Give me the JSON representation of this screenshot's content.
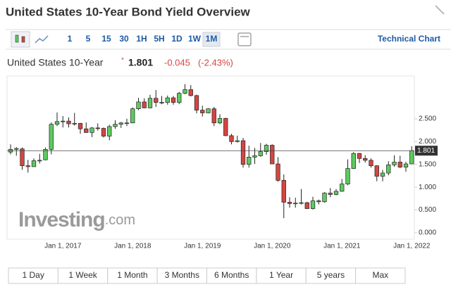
{
  "header": {
    "title": "United States 10-Year Bond Yield Overview"
  },
  "toolbar": {
    "intervals": [
      "1",
      "5",
      "15",
      "30",
      "1H",
      "5H",
      "1D",
      "1W",
      "1M"
    ],
    "technical": "Technical Chart"
  },
  "ranges": [
    "1 Day",
    "1 Week",
    "1 Month",
    "3 Months",
    "6 Months",
    "1 Year",
    "5 years",
    "Max"
  ],
  "chart_data": {
    "type": "candlestick",
    "title": "United States 10-Year",
    "last": 1.801,
    "change": -0.045,
    "change_pct": "(-2.43%)",
    "watermark": {
      "name": "Investing",
      "suffix": ".com"
    },
    "categories": [
      null,
      null,
      null,
      null,
      null,
      null,
      null,
      null,
      null,
      "Jan 1, 2017",
      null,
      null,
      null,
      null,
      null,
      null,
      null,
      null,
      null,
      null,
      null,
      "Jan 1, 2018",
      null,
      null,
      null,
      null,
      null,
      null,
      null,
      null,
      null,
      null,
      null,
      "Jan 1, 2019",
      null,
      null,
      null,
      null,
      null,
      null,
      null,
      null,
      null,
      null,
      null,
      "Jan 1, 2020",
      null,
      null,
      null,
      null,
      null,
      null,
      null,
      null,
      null,
      null,
      null,
      "Jan 1, 2021",
      null,
      null,
      null,
      null,
      null,
      null,
      null,
      null,
      null,
      null,
      null,
      "Jan 1, 2022"
    ],
    "open": [
      1.77,
      1.83,
      1.84,
      1.47,
      1.45,
      1.58,
      1.6,
      1.83,
      2.38,
      2.44,
      2.45,
      2.39,
      2.4,
      2.28,
      2.2,
      2.3,
      2.29,
      2.12,
      2.33,
      2.38,
      2.41,
      2.41,
      2.72,
      2.87,
      2.74,
      2.95,
      2.86,
      2.86,
      2.96,
      2.86,
      3.06,
      3.14,
      3.01,
      2.69,
      2.63,
      2.72,
      2.41,
      2.51,
      2.13,
      2.0,
      2.02,
      1.5,
      1.66,
      1.69,
      1.78,
      1.92,
      1.51,
      1.15,
      0.67,
      0.64,
      0.65,
      0.66,
      0.53,
      0.7,
      0.68,
      0.87,
      0.84,
      0.91,
      1.07,
      1.41,
      1.74,
      1.63,
      1.59,
      1.47,
      1.24,
      1.31,
      1.49,
      1.55,
      1.44,
      1.51
    ],
    "high": [
      1.94,
      1.88,
      1.87,
      1.6,
      1.63,
      1.73,
      1.87,
      2.42,
      2.64,
      2.56,
      2.53,
      2.63,
      2.41,
      2.42,
      2.32,
      2.4,
      2.31,
      2.37,
      2.47,
      2.43,
      2.5,
      2.75,
      2.96,
      2.95,
      3.03,
      3.13,
      3.0,
      3.01,
      3.0,
      3.09,
      3.26,
      3.24,
      3.03,
      2.79,
      2.73,
      2.76,
      2.6,
      2.52,
      2.17,
      2.13,
      2.08,
      1.91,
      1.86,
      1.97,
      1.95,
      1.94,
      1.66,
      1.28,
      0.78,
      0.77,
      0.96,
      0.68,
      0.79,
      0.73,
      0.89,
      0.98,
      0.96,
      1.18,
      1.61,
      1.77,
      1.75,
      1.7,
      1.63,
      1.48,
      1.38,
      1.57,
      1.7,
      1.69,
      1.56,
      1.9
    ],
    "low": [
      1.72,
      1.69,
      1.38,
      1.32,
      1.45,
      1.52,
      1.59,
      1.72,
      2.34,
      2.31,
      2.31,
      2.35,
      2.17,
      2.19,
      2.1,
      2.24,
      2.09,
      2.03,
      2.28,
      2.3,
      2.34,
      2.41,
      2.69,
      2.73,
      2.73,
      2.76,
      2.82,
      2.81,
      2.81,
      2.82,
      3.04,
      2.99,
      2.62,
      2.55,
      2.62,
      2.34,
      2.38,
      2.12,
      1.94,
      1.98,
      1.43,
      1.43,
      1.51,
      1.67,
      1.71,
      1.51,
      1.12,
      0.32,
      0.55,
      0.55,
      0.62,
      0.52,
      0.51,
      0.62,
      0.66,
      0.78,
      0.82,
      0.9,
      1.04,
      1.4,
      1.53,
      1.54,
      1.43,
      1.13,
      1.13,
      1.26,
      1.45,
      1.42,
      1.34,
      1.51
    ],
    "close": [
      1.83,
      1.85,
      1.47,
      1.45,
      1.58,
      1.59,
      1.83,
      2.38,
      2.44,
      2.45,
      2.39,
      2.4,
      2.28,
      2.2,
      2.3,
      2.29,
      2.12,
      2.33,
      2.38,
      2.41,
      2.41,
      2.72,
      2.87,
      2.74,
      2.95,
      2.86,
      2.86,
      2.96,
      2.86,
      3.06,
      3.14,
      3.01,
      2.69,
      2.63,
      2.72,
      2.41,
      2.51,
      2.13,
      2.0,
      2.02,
      1.5,
      1.66,
      1.69,
      1.78,
      1.92,
      1.51,
      1.15,
      0.67,
      0.64,
      0.65,
      0.66,
      0.53,
      0.7,
      0.68,
      0.87,
      0.84,
      0.91,
      1.07,
      1.41,
      1.74,
      1.63,
      1.59,
      1.47,
      1.24,
      1.31,
      1.49,
      1.55,
      1.44,
      1.51,
      1.801
    ],
    "up_color": "#5ccb5f",
    "down_color": "#d64541",
    "ylim": [
      -0.14,
      3.44
    ],
    "yticks": [
      {
        "value": 0,
        "label": "0.000"
      },
      {
        "value": 0.5,
        "label": "0.500"
      },
      {
        "value": 1,
        "label": "1.000"
      },
      {
        "value": 1.5,
        "label": "1.500"
      },
      {
        "value": 2,
        "label": "2.000"
      },
      {
        "value": 2.5,
        "label": "2.500"
      }
    ]
  }
}
